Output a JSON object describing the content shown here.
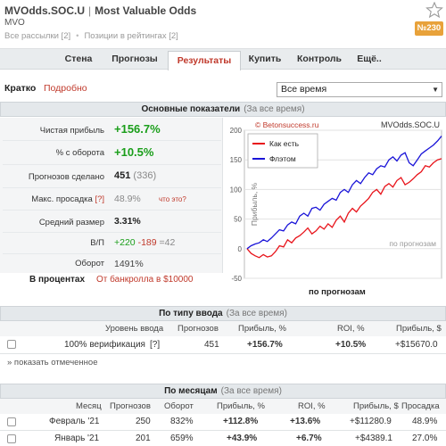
{
  "header": {
    "title": "MVOdds.SOC.U",
    "title_extra": "Most Valuable Odds",
    "title_sep": "|",
    "subtitle": "MVO",
    "link1": "Все рассылки [2]",
    "link2": "Позиции в рейтингах [2]",
    "badge": "№230",
    "star_icon": "star-outline-icon"
  },
  "nav": {
    "tabs": [
      "Стена",
      "Прогнозы",
      "Результаты",
      "Купить",
      "Контроль",
      "Ещё.."
    ],
    "active": "Результаты"
  },
  "toolbar": {
    "short": "Кратко",
    "detailed": "Подробно",
    "period": "Все время"
  },
  "stats": {
    "header": "Основные показатели",
    "header_sub": "(За все время)",
    "profit_label": "Чистая прибыль",
    "profit_value": "+156.7%",
    "turnover_label": "% с оборота",
    "turnover_value": "+10.5%",
    "made_label": "Прогнозов сделано",
    "made_value": "451",
    "made_extra": "(336)",
    "drawdown_label": "Макс. просадка",
    "drawdown_q": "[?]",
    "drawdown_value": "48.9%",
    "drawdown_link": "что это?",
    "avg_label": "Средний размер",
    "avg_value": "3.31%",
    "wl_label": "В/П",
    "wl_win": "+220",
    "wl_loss": "-189",
    "wl_draw": "=42",
    "turnover2_label": "Оборот",
    "turnover2_value": "1491%",
    "percent_label": "В процентах",
    "bank_label": "От банкролла в $10000"
  },
  "chart_data": {
    "type": "line",
    "title": "MVOdds.SOC.U",
    "watermark": "© Betonsuccess.ru",
    "ylabel": "Прибыль, %",
    "xlabel": "по прогнозам",
    "inner_label": "по прогнозам",
    "ylim": [
      -50,
      200
    ],
    "yticks": [
      -50,
      0,
      50,
      100,
      150,
      200
    ],
    "legend_position": "top-left",
    "series": [
      {
        "name": "Как есть",
        "color": "#e8141b",
        "values": [
          0,
          -8,
          -12,
          -15,
          -10,
          -14,
          -12,
          -5,
          5,
          3,
          15,
          10,
          18,
          22,
          28,
          35,
          25,
          30,
          38,
          33,
          42,
          36,
          48,
          55,
          45,
          60,
          68,
          62,
          72,
          78,
          85,
          95,
          100,
          92,
          105,
          110,
          104,
          115,
          120,
          108,
          112,
          118,
          125,
          130,
          140,
          138,
          145,
          150,
          152
        ]
      },
      {
        "name": "Флэтом",
        "color": "#1a14d8",
        "values": [
          0,
          5,
          8,
          10,
          15,
          12,
          18,
          25,
          32,
          30,
          40,
          45,
          42,
          55,
          60,
          55,
          68,
          70,
          65,
          75,
          80,
          85,
          82,
          95,
          100,
          95,
          108,
          115,
          110,
          120,
          128,
          125,
          135,
          140,
          138,
          150,
          155,
          148,
          158,
          162,
          145,
          140,
          150,
          160,
          165,
          170,
          175,
          182,
          190
        ]
      }
    ]
  },
  "by_type": {
    "header": "По типу ввода",
    "header_sub": "(За все время)",
    "columns": [
      "Уровень ввода",
      "Прогнозов",
      "Прибыль, %",
      "ROI, %",
      "Прибыль, $"
    ],
    "row": {
      "level": "100% верификация",
      "q": "[?]",
      "count": "451",
      "profit_pct": "+156.7%",
      "roi": "+10.5%",
      "profit_usd": "+$15670.0"
    },
    "show_marked": "» показать отмеченное"
  },
  "by_month": {
    "header": "По месяцам",
    "header_sub": "(За все время)",
    "columns": [
      "Месяц",
      "Прогнозов",
      "Оборот",
      "Прибыль, %",
      "ROI, %",
      "Прибыль, $",
      "Просадка"
    ],
    "rows": [
      {
        "month": "Февраль '21",
        "count": "250",
        "turnover": "832%",
        "profit_pct": "+112.8%",
        "roi": "+13.6%",
        "profit_usd": "+$11280.9",
        "drawdown": "48.9%"
      },
      {
        "month": "Январь '21",
        "count": "201",
        "turnover": "659%",
        "profit_pct": "+43.9%",
        "roi": "+6.7%",
        "profit_usd": "+$4389.1",
        "drawdown": "27.0%"
      }
    ]
  }
}
